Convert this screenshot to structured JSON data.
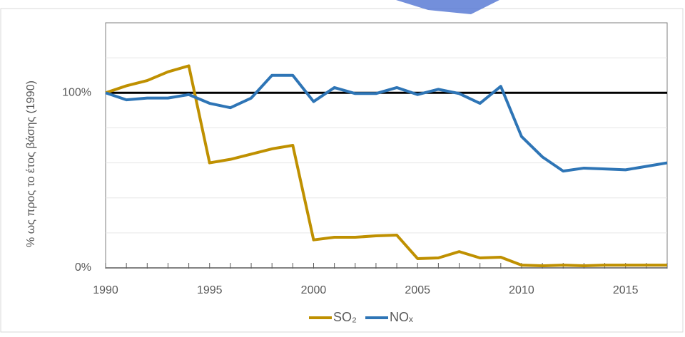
{
  "chart_data": {
    "type": "line",
    "y_label": "% ως προς το έτος βάσης (1990)",
    "x": [
      1990,
      1991,
      1992,
      1993,
      1994,
      1995,
      1996,
      1997,
      1998,
      1999,
      2000,
      2001,
      2002,
      2003,
      2004,
      2005,
      2006,
      2007,
      2008,
      2009,
      2010,
      2011,
      2012,
      2013,
      2014,
      2015,
      2016,
      2017
    ],
    "series": [
      {
        "name": "SO₂",
        "color": "#bf9000",
        "values": [
          100,
          104,
          107,
          112,
          115.4,
          60,
          62,
          65,
          68,
          70,
          16,
          17.5,
          17.5,
          18.3,
          18.7,
          5.3,
          5.7,
          9.3,
          5.7,
          6.1,
          1.6,
          1.2,
          1.6,
          1.2,
          1.6,
          1.6,
          1.6,
          1.6
        ]
      },
      {
        "name": "NOₓ",
        "color": "#2e75b6",
        "values": [
          100,
          96,
          97,
          97,
          99,
          94,
          91.5,
          97,
          110,
          110,
          95,
          103,
          99.6,
          99.6,
          103,
          99,
          102,
          99.6,
          94,
          103.7,
          75,
          63.4,
          55.3,
          57,
          56.5,
          56,
          58,
          60
        ]
      }
    ],
    "xlim": [
      1990,
      2017
    ],
    "xticks": [
      1990,
      1995,
      2000,
      2005,
      2010,
      2015
    ],
    "ylim": [
      0,
      140
    ],
    "yticks": [
      {
        "value": 0,
        "label": "0%"
      },
      {
        "value": 100,
        "label": "100%"
      }
    ],
    "minor_yticks": [
      20,
      40,
      60,
      80,
      120
    ],
    "reference_line": 100,
    "grid": true,
    "legend": "bottom"
  }
}
